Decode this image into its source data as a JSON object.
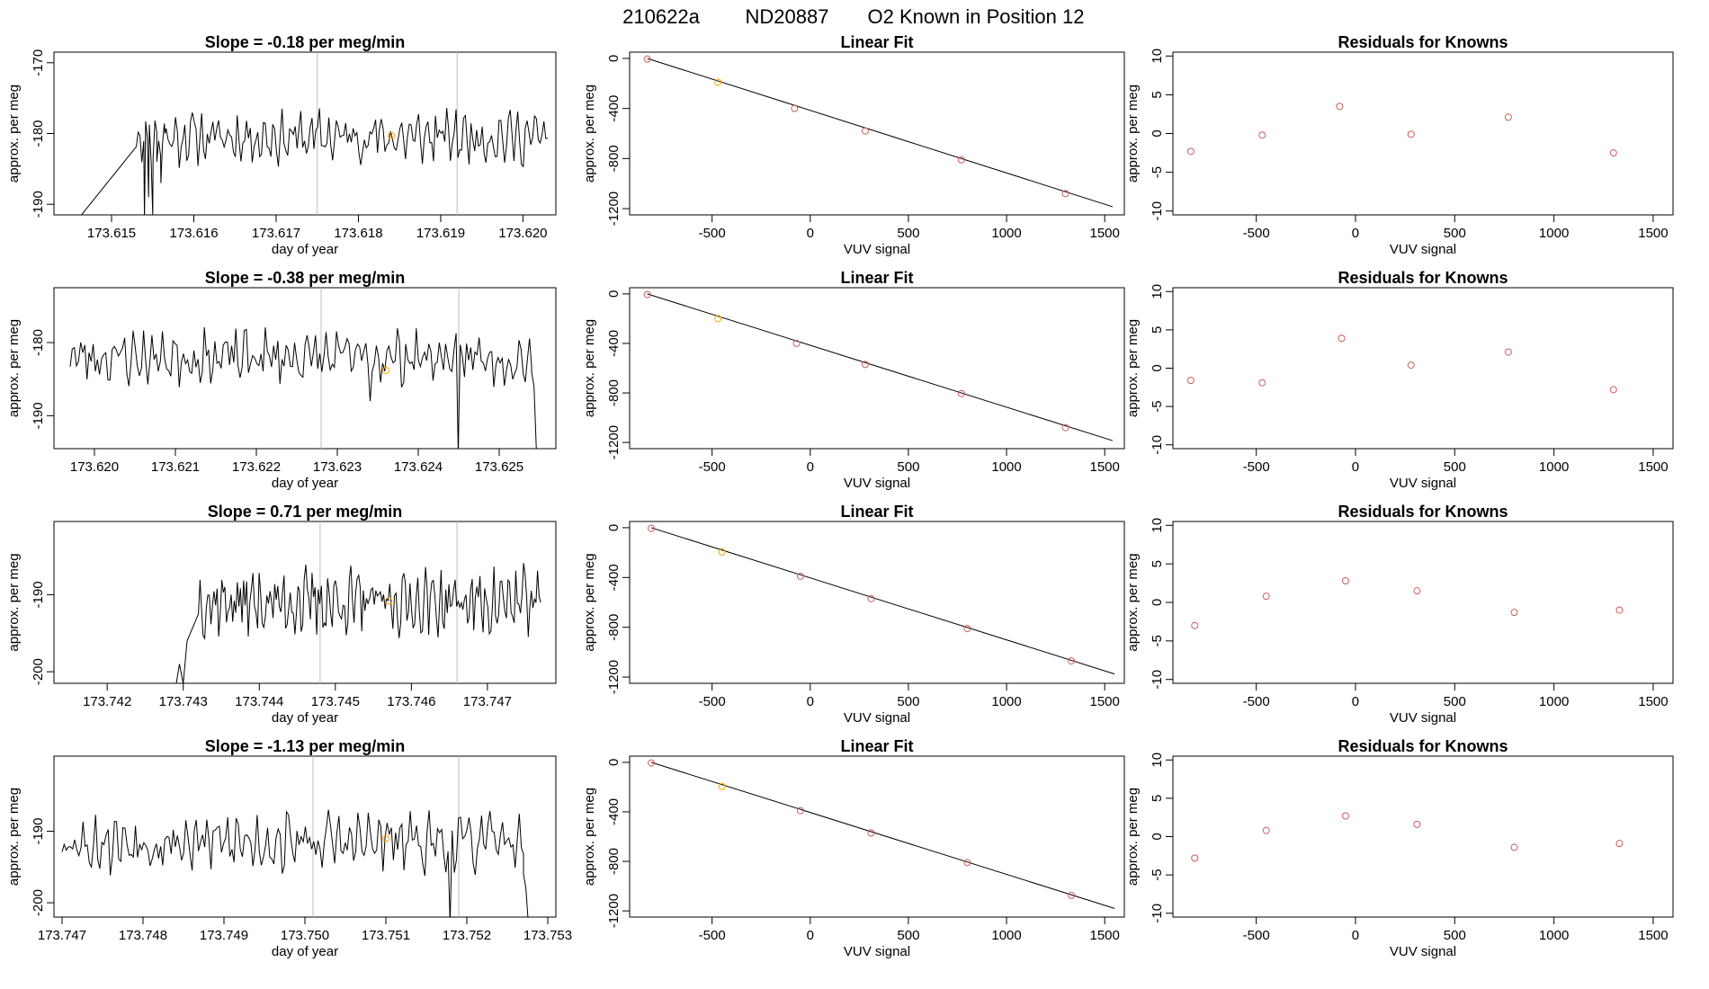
{
  "page_title": {
    "run": "210622a",
    "tank": "ND20887",
    "text": "O2 Known in Position  12"
  },
  "colors": {
    "trace": "#000000",
    "vline": "#bebebe",
    "point": "#cd5c5c",
    "point_orange": "#ffa500",
    "fit_line": "#000000"
  },
  "chart_data": [
    {
      "row": 1,
      "time": {
        "type": "line",
        "title": "Slope =  -0.18  per meg/min",
        "xlabel": "day of year",
        "ylabel": "approx. per meg",
        "xlim": [
          173.6143,
          173.6204
        ],
        "ylim": [
          -191.5,
          -168.5
        ],
        "xticks": [
          173.615,
          173.616,
          173.617,
          173.618,
          173.619,
          173.62
        ],
        "xtick_labels": [
          "173.615",
          "173.616",
          "173.617",
          "173.618",
          "173.619",
          "173.620"
        ],
        "yticks": [
          -190,
          -180,
          -170
        ],
        "ytick_labels": [
          "-190",
          "-180",
          "-170"
        ],
        "x_start": 173.6153,
        "x_end": 173.6203,
        "y_base": -180.5,
        "y_amp": 3.5,
        "seed": 11,
        "warmup": [
          [
            173.6146,
            -192.0
          ],
          [
            173.6154,
            -192.0
          ],
          [
            173.61545,
            -189.0
          ],
          [
            173.6155,
            -191.5
          ],
          [
            173.61555,
            -184.0
          ],
          [
            173.6156,
            -187.0
          ],
          [
            173.61565,
            -180.0
          ]
        ],
        "vlines": [
          173.6175,
          173.6192
        ],
        "marker": {
          "x": 173.6184,
          "y": -180.3
        }
      },
      "fit": {
        "type": "scatter",
        "title": "Linear Fit",
        "xlabel": "VUV signal",
        "ylabel": "approx. per meg",
        "xlim": [
          -920,
          1600
        ],
        "ylim": [
          -1250,
          50
        ],
        "xticks": [
          -500,
          0,
          500,
          1000,
          1500
        ],
        "xtick_labels": [
          "-500",
          "0",
          "500",
          "1000",
          "1500"
        ],
        "yticks": [
          -1200,
          -800,
          -400,
          0
        ],
        "ytick_labels": [
          "-1200",
          "-800",
          "-400",
          "0"
        ],
        "x": [
          -830,
          -470,
          -80,
          280,
          770,
          1300
        ],
        "y": [
          -5,
          -190,
          -400,
          -580,
          -810,
          -1080
        ],
        "highlight_index": 1,
        "line": [
          [
            -830,
            0
          ],
          [
            1540,
            -1185
          ]
        ]
      },
      "resid": {
        "type": "scatter",
        "title": "Residuals for Knowns",
        "xlabel": "VUV signal",
        "ylabel": "approx. per meg",
        "xlim": [
          -920,
          1600
        ],
        "ylim": [
          -10.5,
          10.5
        ],
        "xticks": [
          -500,
          0,
          500,
          1000,
          1500
        ],
        "xtick_labels": [
          "-500",
          "0",
          "500",
          "1000",
          "1500"
        ],
        "yticks": [
          -10,
          -5,
          0,
          5,
          10
        ],
        "ytick_labels": [
          "-10",
          "-5",
          "0",
          "5",
          "10"
        ],
        "x": [
          -830,
          -470,
          -80,
          280,
          770,
          1300
        ],
        "y": [
          -2.3,
          -0.2,
          3.5,
          -0.1,
          2.1,
          -2.5
        ]
      }
    },
    {
      "row": 2,
      "time": {
        "type": "line",
        "title": "Slope =  -0.38  per meg/min",
        "xlabel": "day of year",
        "ylabel": "approx. per meg",
        "xlim": [
          173.6195,
          173.6257
        ],
        "ylim": [
          -194.5,
          -172.5
        ],
        "xticks": [
          173.62,
          173.621,
          173.622,
          173.623,
          173.624,
          173.625
        ],
        "xtick_labels": [
          "173.620",
          "173.621",
          "173.622",
          "173.623",
          "173.624",
          "173.625"
        ],
        "yticks": [
          -190,
          -180
        ],
        "ytick_labels": [
          "-190",
          "-180"
        ],
        "x_start": 173.6197,
        "x_end": 173.6254,
        "y_base": -182.0,
        "y_amp": 3.4,
        "seed": 23,
        "warmup": [],
        "tail": [
          [
            173.6254,
            -184.0
          ],
          [
            173.62543,
            -186.0
          ],
          [
            173.62546,
            -195.0
          ]
        ],
        "dips": [
          [
            173.6234,
            -188.0
          ],
          [
            173.6245,
            -195.0
          ]
        ],
        "vlines": [
          173.6228,
          173.6245
        ],
        "marker": {
          "x": 173.6236,
          "y": -183.8
        }
      },
      "fit": {
        "type": "scatter",
        "title": "Linear Fit",
        "xlabel": "VUV signal",
        "ylabel": "approx. per meg",
        "xlim": [
          -920,
          1600
        ],
        "ylim": [
          -1250,
          50
        ],
        "xticks": [
          -500,
          0,
          500,
          1000,
          1500
        ],
        "xtick_labels": [
          "-500",
          "0",
          "500",
          "1000",
          "1500"
        ],
        "yticks": [
          -1200,
          -800,
          -400,
          0
        ],
        "ytick_labels": [
          "-1200",
          "-800",
          "-400",
          "0"
        ],
        "x": [
          -830,
          -470,
          -70,
          280,
          770,
          1300
        ],
        "y": [
          -5,
          -200,
          -400,
          -570,
          -805,
          -1080
        ],
        "highlight_index": 1,
        "line": [
          [
            -830,
            0
          ],
          [
            1540,
            -1185
          ]
        ]
      },
      "resid": {
        "type": "scatter",
        "title": "Residuals for Knowns",
        "xlabel": "VUV signal",
        "ylabel": "approx. per meg",
        "xlim": [
          -920,
          1600
        ],
        "ylim": [
          -10.5,
          10.5
        ],
        "xticks": [
          -500,
          0,
          500,
          1000,
          1500
        ],
        "xtick_labels": [
          "-500",
          "0",
          "500",
          "1000",
          "1500"
        ],
        "yticks": [
          -10,
          -5,
          0,
          5,
          10
        ],
        "ytick_labels": [
          "-10",
          "-5",
          "0",
          "5",
          "10"
        ],
        "x": [
          -830,
          -470,
          -70,
          280,
          770,
          1300
        ],
        "y": [
          -1.6,
          -1.9,
          3.9,
          0.4,
          2.1,
          -2.8
        ]
      }
    },
    {
      "row": 3,
      "time": {
        "type": "line",
        "title": "Slope =  0.71  per meg/min",
        "xlabel": "day of year",
        "ylabel": "approx. per meg",
        "xlim": [
          173.7413,
          173.7479
        ],
        "ylim": [
          -201.5,
          -180.5
        ],
        "xticks": [
          173.742,
          173.743,
          173.744,
          173.745,
          173.746,
          173.747
        ],
        "xtick_labels": [
          "173.742",
          "173.743",
          "173.744",
          "173.745",
          "173.746",
          "173.747"
        ],
        "yticks": [
          -200,
          -190
        ],
        "ytick_labels": [
          "-200",
          "-190"
        ],
        "x_start": 173.7432,
        "x_end": 173.7477,
        "y_base": -191.0,
        "y_amp": 4.0,
        "seed": 37,
        "warmup": [
          [
            173.7416,
            -202.0
          ],
          [
            173.7429,
            -202.0
          ],
          [
            173.74295,
            -199.0
          ],
          [
            173.743,
            -201.5
          ],
          [
            173.74305,
            -196.0
          ]
        ],
        "vlines": [
          173.7448,
          173.7466
        ],
        "marker": {
          "x": 173.7457,
          "y": -190.8
        }
      },
      "fit": {
        "type": "scatter",
        "title": "Linear Fit",
        "xlabel": "VUV signal",
        "ylabel": "approx. per meg",
        "xlim": [
          -920,
          1600
        ],
        "ylim": [
          -1250,
          50
        ],
        "xticks": [
          -500,
          0,
          500,
          1000,
          1500
        ],
        "xtick_labels": [
          "-500",
          "0",
          "500",
          "1000",
          "1500"
        ],
        "yticks": [
          -1200,
          -800,
          -400,
          0
        ],
        "ytick_labels": [
          "-1200",
          "-800",
          "-400",
          "0"
        ],
        "x": [
          -810,
          -450,
          -50,
          310,
          800,
          1330
        ],
        "y": [
          -5,
          -195,
          -390,
          -570,
          -810,
          -1070
        ],
        "highlight_index": 1,
        "line": [
          [
            -810,
            0
          ],
          [
            1550,
            -1175
          ]
        ]
      },
      "resid": {
        "type": "scatter",
        "title": "Residuals for Knowns",
        "xlabel": "VUV signal",
        "ylabel": "approx. per meg",
        "xlim": [
          -920,
          1600
        ],
        "ylim": [
          -10.5,
          10.5
        ],
        "xticks": [
          -500,
          0,
          500,
          1000,
          1500
        ],
        "xtick_labels": [
          "-500",
          "0",
          "500",
          "1000",
          "1500"
        ],
        "yticks": [
          -10,
          -5,
          0,
          5,
          10
        ],
        "ytick_labels": [
          "-10",
          "-5",
          "0",
          "5",
          "10"
        ],
        "x": [
          -810,
          -450,
          -50,
          310,
          800,
          1330
        ],
        "y": [
          -3.0,
          0.8,
          2.8,
          1.5,
          -1.3,
          -1.0
        ]
      }
    },
    {
      "row": 4,
      "time": {
        "type": "line",
        "title": "Slope =  -1.13  per meg/min",
        "xlabel": "day of year",
        "ylabel": "approx. per meg",
        "xlim": [
          173.7469,
          173.7531
        ],
        "ylim": [
          -202.0,
          -179.5
        ],
        "xticks": [
          173.747,
          173.748,
          173.749,
          173.75,
          173.751,
          173.752,
          173.753
        ],
        "xtick_labels": [
          "173.747",
          "173.748",
          "173.749",
          "173.750",
          "173.751",
          "173.752",
          "173.753"
        ],
        "yticks": [
          -200,
          -190
        ],
        "ytick_labels": [
          "-200",
          "-190"
        ],
        "x_start": 173.747,
        "x_end": 173.7527,
        "y_base": -191.5,
        "y_amp": 3.8,
        "seed": 53,
        "warmup": [],
        "tail": [
          [
            173.7527,
            -196.0
          ],
          [
            173.75273,
            -198.0
          ],
          [
            173.75276,
            -203.0
          ]
        ],
        "dips": [
          [
            173.7518,
            -203.0
          ]
        ],
        "vlines": [
          173.7501,
          173.7519
        ],
        "marker": {
          "x": 173.751,
          "y": -191.0
        }
      },
      "fit": {
        "type": "scatter",
        "title": "Linear Fit",
        "xlabel": "VUV signal",
        "ylabel": "approx. per meg",
        "xlim": [
          -920,
          1600
        ],
        "ylim": [
          -1250,
          50
        ],
        "xticks": [
          -500,
          0,
          500,
          1000,
          1500
        ],
        "xtick_labels": [
          "-500",
          "0",
          "500",
          "1000",
          "1500"
        ],
        "yticks": [
          -1200,
          -800,
          -400,
          0
        ],
        "ytick_labels": [
          "-1200",
          "-800",
          "-400",
          "0"
        ],
        "x": [
          -810,
          -450,
          -50,
          310,
          800,
          1330
        ],
        "y": [
          -5,
          -195,
          -390,
          -570,
          -810,
          -1075
        ],
        "highlight_index": 1,
        "line": [
          [
            -810,
            0
          ],
          [
            1550,
            -1180
          ]
        ]
      },
      "resid": {
        "type": "scatter",
        "title": "Residuals for Knowns",
        "xlabel": "VUV signal",
        "ylabel": "approx. per meg",
        "xlim": [
          -920,
          1600
        ],
        "ylim": [
          -10.5,
          10.5
        ],
        "xticks": [
          -500,
          0,
          500,
          1000,
          1500
        ],
        "xtick_labels": [
          "-500",
          "0",
          "500",
          "1000",
          "1500"
        ],
        "yticks": [
          -10,
          -5,
          0,
          5,
          10
        ],
        "ytick_labels": [
          "-10",
          "-5",
          "0",
          "5",
          "10"
        ],
        "x": [
          -810,
          -450,
          -50,
          310,
          800,
          1330
        ],
        "y": [
          -2.8,
          0.8,
          2.7,
          1.6,
          -1.4,
          -0.9
        ]
      }
    }
  ]
}
